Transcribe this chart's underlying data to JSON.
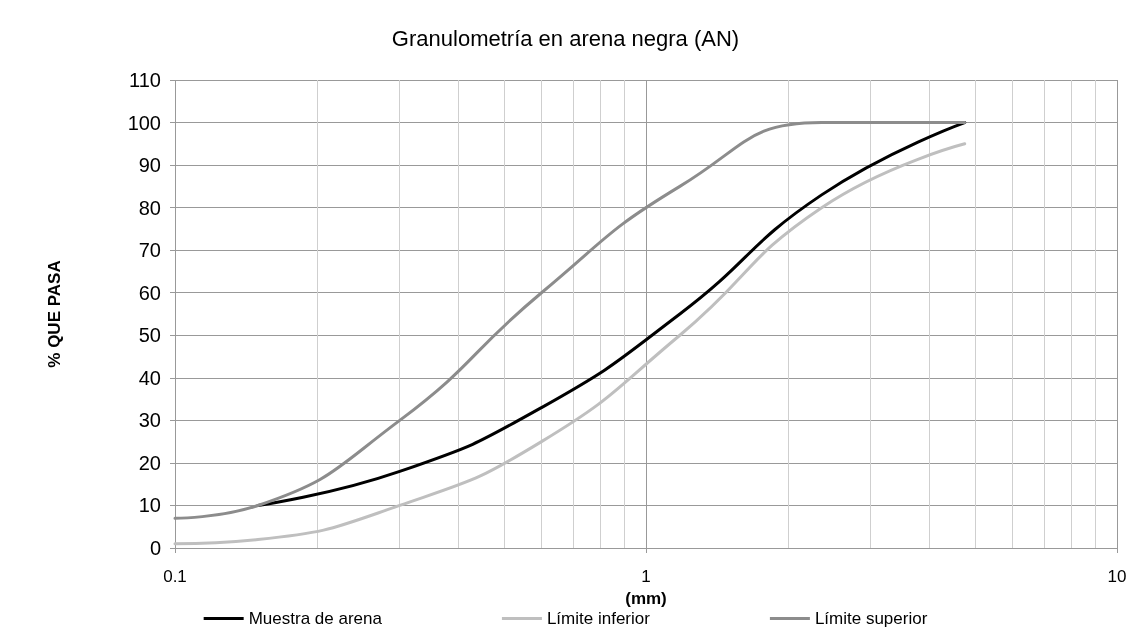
{
  "chart_data": {
    "type": "line",
    "title": "Granulometría en arena negra (AN)",
    "xlabel": "(mm)",
    "ylabel": "% QUE PASA",
    "log": "x",
    "grid": true,
    "legend": "bottom",
    "marker": "none",
    "line_style": "solid",
    "xlim": [
      0.1,
      10
    ],
    "xticks": [
      0.1,
      1,
      10
    ],
    "ylim": [
      0,
      110
    ],
    "yticks": [
      0,
      10,
      20,
      30,
      40,
      50,
      60,
      70,
      80,
      90,
      100,
      110
    ],
    "series": [
      {
        "name": "Muestra de arena",
        "color": "#000000",
        "x": [
          0.15,
          0.3,
          0.6,
          1.18,
          2.36,
          4.75
        ],
        "values": [
          10,
          18,
          33,
          55,
          83,
          100
        ]
      },
      {
        "name": "Límite inferior",
        "color": "#bfbfbf",
        "x": [
          0.1,
          0.15,
          0.3,
          0.6,
          1.18,
          2.36,
          4.75
        ],
        "values": [
          1,
          2,
          10,
          25,
          50,
          80,
          95
        ]
      },
      {
        "name": "Límite superior",
        "color": "#8c8c8c",
        "x": [
          0.1,
          0.15,
          0.3,
          0.6,
          1.18,
          2.36,
          4.75
        ],
        "values": [
          7,
          10,
          30,
          60,
          85,
          100,
          100
        ]
      }
    ]
  }
}
